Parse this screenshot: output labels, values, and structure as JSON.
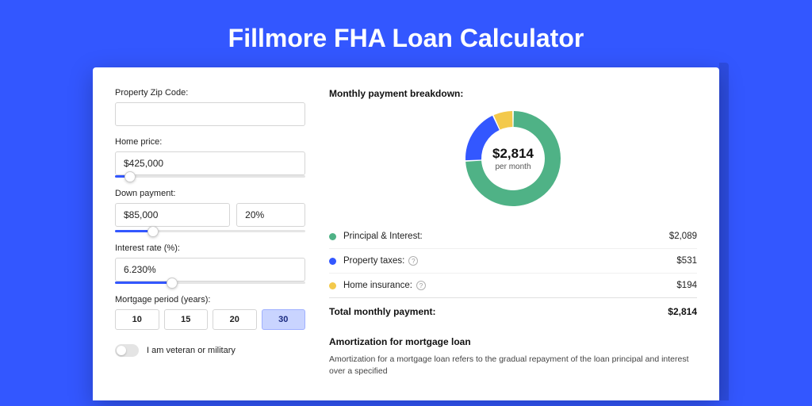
{
  "page": {
    "title": "Fillmore FHA Loan Calculator",
    "background_color": "#3357ff",
    "card_background": "#ffffff"
  },
  "form": {
    "zip": {
      "label": "Property Zip Code:",
      "value": ""
    },
    "home_price": {
      "label": "Home price:",
      "value": "$425,000",
      "slider_pct": 8
    },
    "down_payment": {
      "label": "Down payment:",
      "amount": "$85,000",
      "percent": "20%",
      "slider_pct": 20
    },
    "interest": {
      "label": "Interest rate (%):",
      "value": "6.230%",
      "slider_pct": 30
    },
    "period": {
      "label": "Mortgage period (years):",
      "options": [
        "10",
        "15",
        "20",
        "30"
      ],
      "active_index": 3
    },
    "veteran": {
      "label": "I am veteran or military",
      "on": false
    }
  },
  "breakdown": {
    "title": "Monthly payment breakdown:",
    "center_amount": "$2,814",
    "center_sub": "per month",
    "donut": {
      "slices": [
        {
          "label": "Principal & Interest",
          "value": 2089,
          "color": "#4fb286",
          "pct": 74.2
        },
        {
          "label": "Property taxes",
          "value": 531,
          "color": "#3357ff",
          "pct": 18.9
        },
        {
          "label": "Home insurance",
          "value": 194,
          "color": "#f3c94b",
          "pct": 6.9
        }
      ],
      "ring_width": 20,
      "background": "#ffffff"
    },
    "items": [
      {
        "dot": "#4fb286",
        "label": "Principal & Interest:",
        "help": false,
        "value": "$2,089"
      },
      {
        "dot": "#3357ff",
        "label": "Property taxes:",
        "help": true,
        "value": "$531"
      },
      {
        "dot": "#f3c94b",
        "label": "Home insurance:",
        "help": true,
        "value": "$194"
      }
    ],
    "total": {
      "label": "Total monthly payment:",
      "value": "$2,814"
    }
  },
  "amortization": {
    "title": "Amortization for mortgage loan",
    "body": "Amortization for a mortgage loan refers to the gradual repayment of the loan principal and interest over a specified"
  }
}
